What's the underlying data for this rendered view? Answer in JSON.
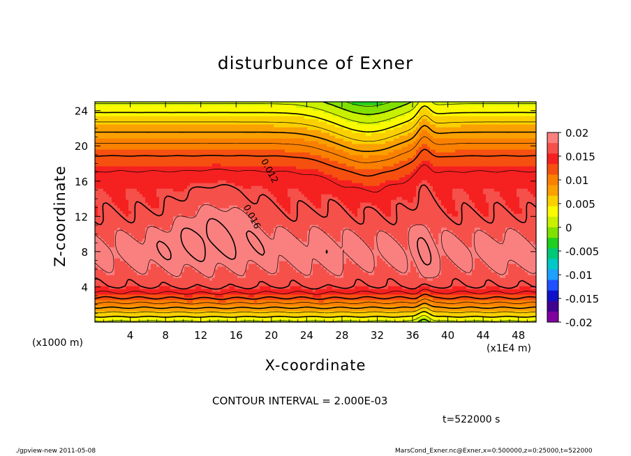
{
  "chart_data": {
    "type": "heatmap",
    "title": "disturbunce of Exner",
    "xlabel": "X-coordinate",
    "ylabel": "Z-coordinate",
    "x_unit_note": "(x1000 m)",
    "x_scale_note": "(x1E4 m)",
    "xlim": [
      0,
      50
    ],
    "ylim": [
      0,
      25
    ],
    "x_ticks": [
      4,
      8,
      12,
      16,
      20,
      24,
      28,
      32,
      36,
      40,
      44,
      48
    ],
    "y_ticks": [
      4,
      8,
      12,
      16,
      20,
      24
    ],
    "colorbar": {
      "range": [
        -0.02,
        0.02
      ],
      "ticks": [
        "0.02",
        "0.015",
        "0.01",
        "0.005",
        "0",
        "-0.005",
        "-0.01",
        "-0.015",
        "-0.02"
      ],
      "colors": [
        "#fa8080",
        "#f5504a",
        "#f52020",
        "#f55010",
        "#fa8000",
        "#faa000",
        "#fad000",
        "#fafa00",
        "#c8f000",
        "#80e000",
        "#20d020",
        "#00c878",
        "#00c8c8",
        "#1ea0ff",
        "#2050ff",
        "#1010c8",
        "#400090",
        "#8000a0"
      ]
    },
    "contour_labels": [
      {
        "text": "0.012",
        "x": 19.5,
        "z": 17.0
      },
      {
        "text": "0.016",
        "x": 17.5,
        "z": 11.8
      }
    ],
    "contour_interval": "CONTOUR INTERVAL = 2.000E-03",
    "time": "t=522000 s"
  },
  "footer": {
    "left": "./gpview-new   2011-05-08",
    "right": "MarsCond_Exner.nc@Exner,x=0:500000,z=0:25000,t=522000"
  }
}
